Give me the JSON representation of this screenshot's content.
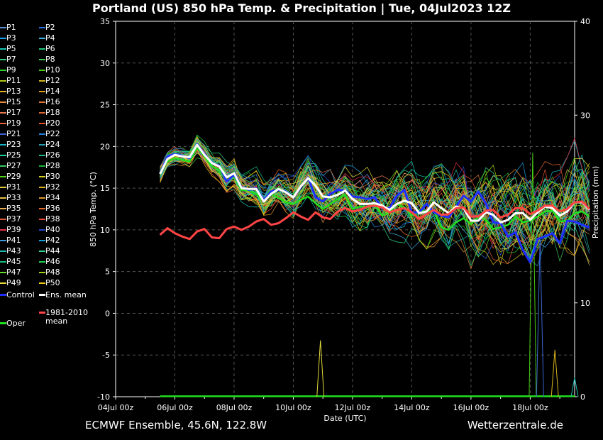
{
  "header": {
    "title": "Portland  (US)  850 hPa Temp. & Precipitation | Tue, 04Jul2023 12Z"
  },
  "footer": {
    "left": "ECMWF Ensemble, 45.6N, 122.8W",
    "right": "Wetterzentrale.de"
  },
  "legend": {
    "members": [
      "P1",
      "P2",
      "P3",
      "P4",
      "P5",
      "P6",
      "P7",
      "P8",
      "P9",
      "P10",
      "P11",
      "P12",
      "P13",
      "P14",
      "P15",
      "P16",
      "P17",
      "P18",
      "P19",
      "P20",
      "P21",
      "P22",
      "P23",
      "P24",
      "P25",
      "P26",
      "P27",
      "P28",
      "P29",
      "P30",
      "P31",
      "P32",
      "P33",
      "P34",
      "P35",
      "P36",
      "P37",
      "P38",
      "P39",
      "P40",
      "P41",
      "P42",
      "P43",
      "P44",
      "P45",
      "P46",
      "P47",
      "P48",
      "P49",
      "P50"
    ],
    "control": "Control",
    "ens_mean": "Ens. mean",
    "oper": "Oper",
    "climate_line1": "1981-2010",
    "climate_line2": "mean"
  },
  "colors": {
    "background": "#000000",
    "control": "#1f2fff",
    "ens_mean": "#ffffff",
    "oper": "#22e01e",
    "climate_mean": "#ff4444",
    "grid": "#555555",
    "members": [
      "#5a8cd8",
      "#2a6ee0",
      "#1aa0e6",
      "#3cb0e0",
      "#14c8b4",
      "#1ec878",
      "#30d080",
      "#3cc850",
      "#28d228",
      "#46c814",
      "#b4c814",
      "#d2b41e",
      "#e6b428",
      "#e6a01e",
      "#e68c3c",
      "#dc7832",
      "#e67850",
      "#dc6432",
      "#e6643c",
      "#e65028",
      "#3c64d2",
      "#1e82dc",
      "#14b4c8",
      "#28a0b4",
      "#14d2a0",
      "#1eb48c",
      "#32c864",
      "#14b43c",
      "#50d214",
      "#d2d21e",
      "#dcc832",
      "#dcb41e",
      "#e6be3c",
      "#dc9628",
      "#e6aa50",
      "#e66e28",
      "#dc5a3c",
      "#e6463c",
      "#e63246",
      "#2846c8",
      "#3c96dc",
      "#14a0dc",
      "#1ebeb4",
      "#32d28c",
      "#14be78",
      "#1ed250",
      "#64dc28",
      "#a0d214",
      "#e6dc3c",
      "#f0c814"
    ]
  },
  "chart_data": {
    "type": "line",
    "title": "Portland  (US)  850 hPa Temp. & Precipitation | Tue, 04Jul2023 12Z",
    "xlabel": "Date (UTC)",
    "ylabel": "850 hPa Temp. (°C)",
    "y2label": "Precipitation (mm)",
    "x_tick_labels": [
      "04Jul 00z",
      "06Jul 00z",
      "08Jul 00z",
      "10Jul 00z",
      "12Jul 00z",
      "14Jul 00z",
      "16Jul 00z",
      "18Jul 00z"
    ],
    "x_range_hours": [
      0,
      372
    ],
    "ylim": [
      -10,
      35
    ],
    "y_ticks": [
      35,
      30,
      25,
      20,
      15,
      10,
      5,
      0,
      -5,
      -10
    ],
    "y2lim": [
      0,
      40
    ],
    "y2_ticks": [
      40,
      30,
      20,
      10,
      0
    ],
    "grid": true,
    "legend_position": "left",
    "time_step_hours": 6,
    "first_hour": 36,
    "series": [
      {
        "name": "Ens. mean",
        "values": [
          16.7,
          18.5,
          19.0,
          18.8,
          18.7,
          20.2,
          19.0,
          18.0,
          17.6,
          16.3,
          16.8,
          15.0,
          14.9,
          14.9,
          13.4,
          14.3,
          14.9,
          14.5,
          13.9,
          15.2,
          16.2,
          15.3,
          14.0,
          13.9,
          14.2,
          14.7,
          13.7,
          13.1,
          13.1,
          13.2,
          12.9,
          12.4,
          13.1,
          13.5,
          13.2,
          12.0,
          12.2,
          13.3,
          12.6,
          12.0,
          12.8,
          12.6,
          11.1,
          11.1,
          12.1,
          11.8,
          10.9,
          11.2,
          12.0,
          12.0,
          11.2,
          12.1,
          12.8,
          12.6,
          11.7,
          12.2,
          13.3,
          13.3,
          12.4
        ]
      },
      {
        "name": "Control",
        "values": [
          16.7,
          18.8,
          19.1,
          18.9,
          18.6,
          20.3,
          19.1,
          18.0,
          17.7,
          15.8,
          16.6,
          15.1,
          14.8,
          15.0,
          13.5,
          14.6,
          14.8,
          14.6,
          13.9,
          15.1,
          16.3,
          13.9,
          13.4,
          14.3,
          14.8,
          14.7,
          14.0,
          13.9,
          13.7,
          13.9,
          12.6,
          12.6,
          14.1,
          14.8,
          12.1,
          12.1,
          13.1,
          12.1,
          11.7,
          11.5,
          12.8,
          14.1,
          13.4,
          14.6,
          13.2,
          10.9,
          10.8,
          9.2,
          9.7,
          7.6,
          6.1,
          8.9,
          9.2,
          9.6,
          8.4,
          11.1,
          11.0,
          10.6,
          10.3
        ]
      },
      {
        "name": "Oper",
        "values": [
          16.8,
          18.2,
          18.6,
          18.4,
          18.2,
          19.9,
          18.8,
          17.6,
          17.2,
          15.9,
          16.4,
          14.8,
          14.7,
          14.3,
          13.4,
          14.3,
          13.8,
          13.3,
          13.1,
          13.6,
          14.0,
          13.2,
          12.5,
          13.1,
          13.7,
          14.2,
          12.5,
          12.8,
          12.7,
          13.0,
          11.7,
          12.1,
          13.1,
          12.7,
          11.7,
          12.3,
          12.2,
          12.3,
          10.3,
          10.0,
          10.9,
          11.4,
          10.7,
          11.6,
          11.2,
          10.1,
          10.3,
          10.6,
          11.6,
          10.9,
          11.1,
          11.6,
          12.2,
          12.3,
          11.0,
          11.1,
          12.0,
          12.2,
          11.6
        ]
      },
      {
        "name": "1981-2010 mean",
        "values": [
          9.4,
          10.2,
          9.6,
          9.2,
          8.9,
          9.8,
          10.1,
          9.1,
          9.0,
          10.1,
          10.4,
          10.0,
          10.4,
          11.0,
          11.3,
          10.6,
          10.8,
          11.4,
          12.1,
          11.6,
          11.2,
          12.1,
          11.5,
          11.3,
          12.2,
          12.6,
          12.2,
          12.4,
          12.8,
          12.9,
          12.7,
          12.1,
          12.4,
          12.6,
          12.1,
          11.3,
          11.9,
          12.4,
          11.8,
          11.9,
          12.6,
          12.7,
          11.6,
          11.6,
          12.3,
          12.4,
          11.5,
          11.8,
          12.6,
          12.6,
          11.9,
          12.3,
          12.9,
          12.9,
          12.2,
          12.5,
          13.3,
          13.4,
          12.5
        ]
      }
    ],
    "member_spread": {
      "note": "50 perturbed members scatter around the ensemble mean, widening from about ±1 °C at the start to about ±8 °C at the end",
      "start_spread": 1.0,
      "end_spread": 8.0
    },
    "precipitation_peaks_mm": [
      {
        "hour": 166,
        "value": 6.0
      },
      {
        "hour": 338,
        "value": 26.0
      },
      {
        "hour": 344,
        "value": 17.0
      },
      {
        "hour": 356,
        "value": 5.0
      },
      {
        "hour": 395,
        "value": 2.0
      }
    ]
  }
}
